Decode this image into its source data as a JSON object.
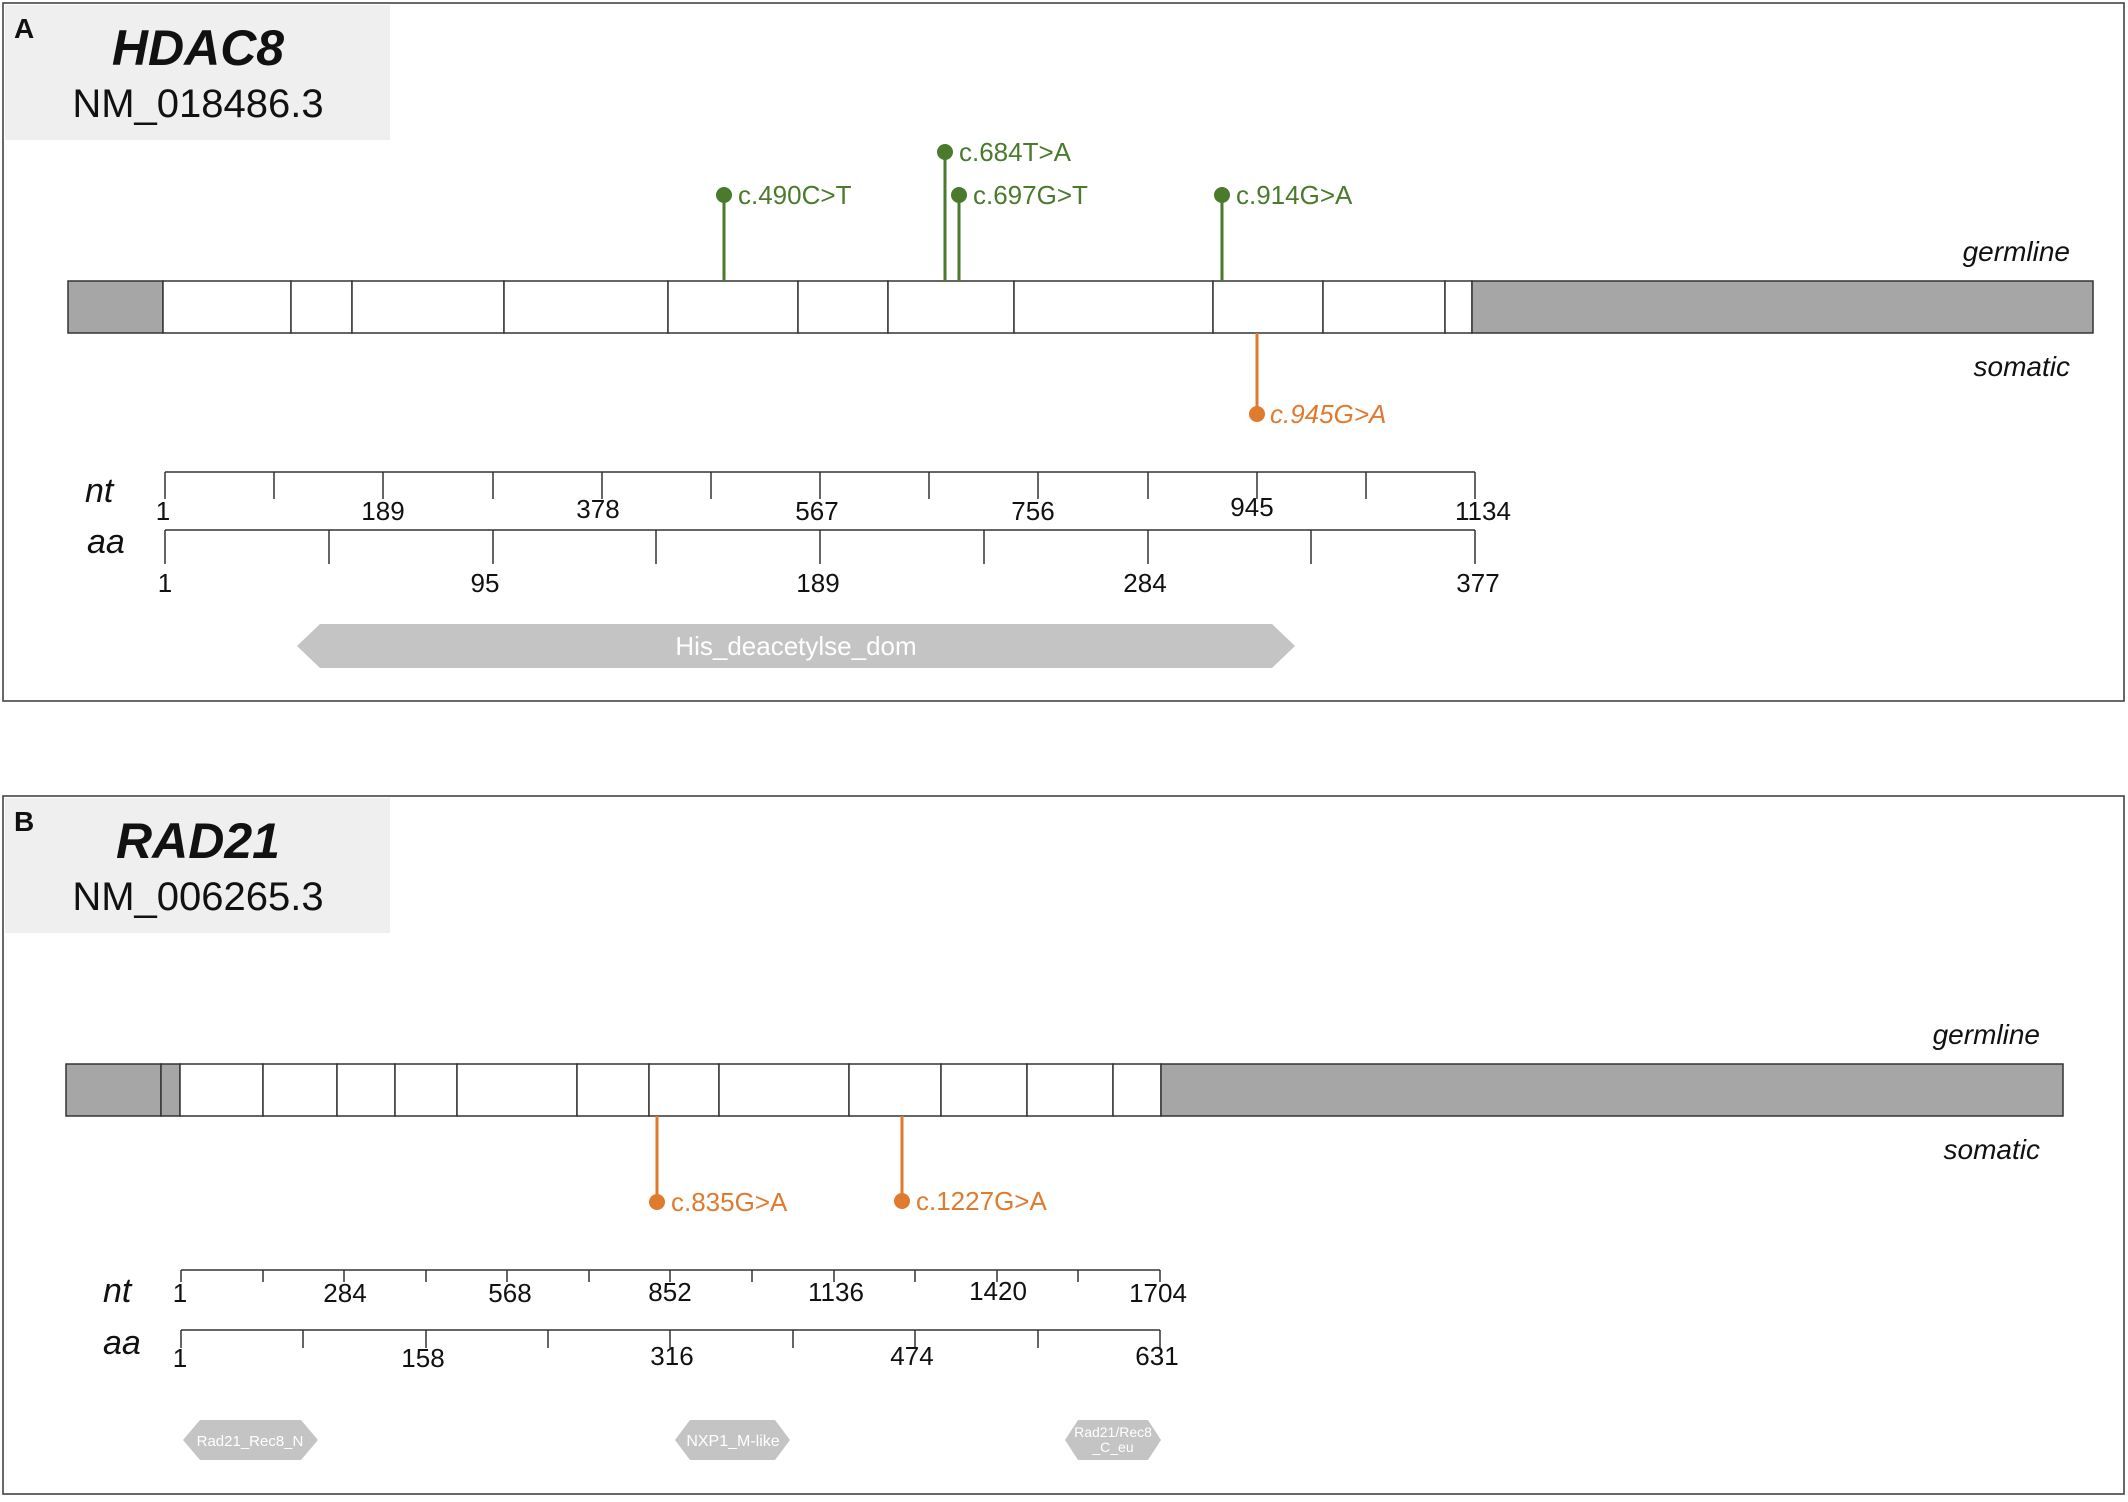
{
  "panels": [
    {
      "letter": "A",
      "gene": "HDAC8",
      "transcript": "NM_018486.3",
      "track_labels": {
        "germline": "germline",
        "somatic": "somatic"
      },
      "nt_label": "nt",
      "aa_label": "aa",
      "nt_ticks": [
        "1",
        "189",
        "378",
        "567",
        "756",
        "945",
        "1134"
      ],
      "aa_ticks": [
        "1",
        "95",
        "189",
        "284",
        "377"
      ],
      "germline_variants": [
        "c.490C>T",
        "c.684T>A",
        "c.697G>T",
        "c.914G>A"
      ],
      "somatic_variants": [
        "c.945G>A"
      ],
      "domains": [
        "His_deacetylse_dom"
      ],
      "colors": {
        "germline": "#4a7a2c",
        "somatic": "#e07a2e",
        "utr": "#a6a6a6",
        "domain": "#c4c4c4"
      }
    },
    {
      "letter": "B",
      "gene": "RAD21",
      "transcript": "NM_006265.3",
      "track_labels": {
        "germline": "germline",
        "somatic": "somatic"
      },
      "nt_label": "nt",
      "aa_label": "aa",
      "nt_ticks": [
        "1",
        "284",
        "568",
        "852",
        "1136",
        "1420",
        "1704"
      ],
      "aa_ticks": [
        "1",
        "158",
        "316",
        "474",
        "631"
      ],
      "germline_variants": [],
      "somatic_variants": [
        "c.835G>A",
        "c.1227G>A"
      ],
      "domains": [
        "Rad21_Rec8_N",
        "NXP1_M-like",
        "Rad21/Rec8_C_eu"
      ],
      "colors": {
        "germline": "#4a7a2c",
        "somatic": "#e07a2e",
        "utr": "#a6a6a6",
        "domain": "#c4c4c4"
      }
    }
  ]
}
